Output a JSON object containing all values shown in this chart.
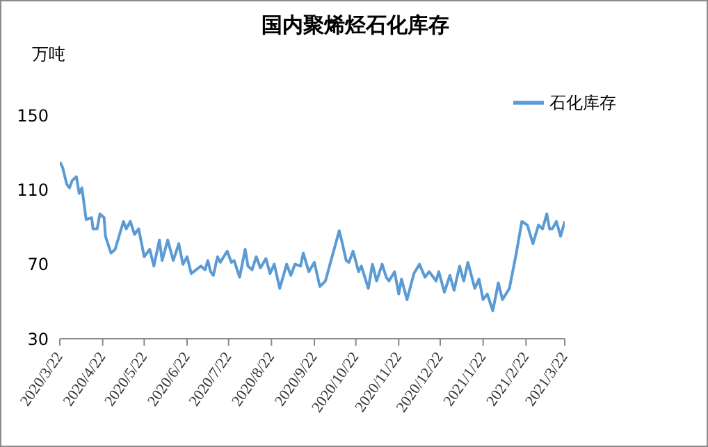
{
  "chart_data": {
    "type": "line",
    "title": "国内聚烯烃石化库存",
    "ylabel": "万吨",
    "x": [
      "2020-03-22",
      "2020-03-24",
      "2020-03-27",
      "2020-03-29",
      "2020-03-31",
      "2020-04-03",
      "2020-04-05",
      "2020-04-07",
      "2020-04-10",
      "2020-04-14",
      "2020-04-15",
      "2020-04-18",
      "2020-04-20",
      "2020-04-23",
      "2020-04-24",
      "2020-04-28",
      "2020-05-01",
      "2020-05-07",
      "2020-05-09",
      "2020-05-12",
      "2020-05-15",
      "2020-05-18",
      "2020-05-22",
      "2020-05-26",
      "2020-05-29",
      "2020-06-02",
      "2020-06-04",
      "2020-06-08",
      "2020-06-12",
      "2020-06-16",
      "2020-06-19",
      "2020-06-22",
      "2020-06-25",
      "2020-07-02",
      "2020-07-05",
      "2020-07-07",
      "2020-07-09",
      "2020-07-11",
      "2020-07-14",
      "2020-07-16",
      "2020-07-21",
      "2020-07-24",
      "2020-07-26",
      "2020-07-30",
      "2020-08-03",
      "2020-08-05",
      "2020-08-08",
      "2020-08-11",
      "2020-08-14",
      "2020-08-18",
      "2020-08-21",
      "2020-08-24",
      "2020-08-28",
      "2020-09-02",
      "2020-09-05",
      "2020-09-08",
      "2020-09-12",
      "2020-09-14",
      "2020-09-18",
      "2020-09-22",
      "2020-09-26",
      "2020-09-30",
      "2020-10-10",
      "2020-10-12",
      "2020-10-15",
      "2020-10-17",
      "2020-10-20",
      "2020-10-24",
      "2020-10-26",
      "2020-10-31",
      "2020-11-03",
      "2020-11-06",
      "2020-11-10",
      "2020-11-13",
      "2020-11-15",
      "2020-11-19",
      "2020-11-22",
      "2020-11-24",
      "2020-11-28",
      "2020-12-03",
      "2020-12-07",
      "2020-12-11",
      "2020-12-14",
      "2020-12-19",
      "2020-12-21",
      "2020-12-25",
      "2020-12-29",
      "2021-01-01",
      "2021-01-05",
      "2021-01-08",
      "2021-01-11",
      "2021-01-16",
      "2021-01-19",
      "2021-01-22",
      "2021-01-25",
      "2021-01-29",
      "2021-02-02",
      "2021-02-05",
      "2021-02-10",
      "2021-02-15",
      "2021-02-19",
      "2021-02-23",
      "2021-02-27",
      "2021-03-03",
      "2021-03-06",
      "2021-03-09",
      "2021-03-11",
      "2021-03-13",
      "2021-03-16",
      "2021-03-19",
      "2021-03-22"
    ],
    "series": [
      {
        "name": "石化库存",
        "color": "#5b9bd5",
        "values": [
          125,
          122,
          113,
          111,
          115,
          117,
          108,
          111,
          94,
          95,
          89,
          89,
          97,
          95,
          85,
          76,
          78,
          93,
          89,
          93,
          86,
          89,
          74,
          78,
          69,
          83,
          72,
          83,
          72,
          81,
          70,
          74,
          65,
          69,
          67,
          72,
          66,
          64,
          74,
          71,
          77,
          71,
          72,
          63,
          78,
          69,
          67,
          74,
          68,
          73,
          65,
          70,
          57,
          70,
          64,
          70,
          69,
          76,
          66,
          71,
          58,
          61,
          88,
          82,
          72,
          71,
          77,
          66,
          69,
          57,
          70,
          61,
          70,
          63,
          61,
          66,
          54,
          62,
          51,
          65,
          70,
          63,
          66,
          61,
          66,
          55,
          64,
          56,
          69,
          61,
          71,
          57,
          62,
          51,
          54,
          45,
          60,
          51,
          57,
          76,
          93,
          91,
          81,
          91,
          89,
          97,
          89,
          89,
          93,
          85,
          93
        ]
      }
    ],
    "xlim": [
      "2020-03-22",
      "2021-03-22"
    ],
    "xticks": [
      {
        "value": "2020-03-22",
        "label": "2020/3/22"
      },
      {
        "value": "2020-04-22",
        "label": "2020/4/22"
      },
      {
        "value": "2020-05-22",
        "label": "2020/5/22"
      },
      {
        "value": "2020-06-22",
        "label": "2020/6/22"
      },
      {
        "value": "2020-07-22",
        "label": "2020/7/22"
      },
      {
        "value": "2020-08-22",
        "label": "2020/8/22"
      },
      {
        "value": "2020-09-22",
        "label": "2020/9/22"
      },
      {
        "value": "2020-10-22",
        "label": "2020/10/22"
      },
      {
        "value": "2020-11-22",
        "label": "2020/11/22"
      },
      {
        "value": "2020-12-22",
        "label": "2020/12/22"
      },
      {
        "value": "2021-01-22",
        "label": "2021/1/22"
      },
      {
        "value": "2021-02-22",
        "label": "2021/2/22"
      },
      {
        "value": "2021-03-22",
        "label": "2021/3/22"
      }
    ],
    "ylim": [
      30,
      150
    ],
    "yticks": [
      30,
      70,
      110,
      150
    ],
    "grid": false,
    "legend": "top right",
    "marker": "none",
    "line_style": "solid"
  }
}
